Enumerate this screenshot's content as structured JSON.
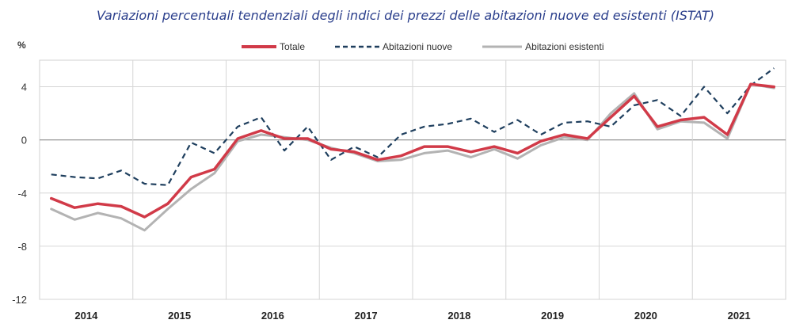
{
  "chart_data": {
    "type": "line",
    "title": "Variazioni percentuali tendenziali degli indici dei prezzi delle abitazioni nuove ed esistenti (ISTAT)",
    "ylabel": "%",
    "xlabel": "",
    "ylim": [
      -12,
      6
    ],
    "yticks": [
      -12,
      -8,
      -4,
      0,
      4
    ],
    "grid": true,
    "legend_position": "top",
    "years": [
      "2014",
      "2015",
      "2016",
      "2017",
      "2018",
      "2019",
      "2020",
      "2021"
    ],
    "x": [
      "2014 T1",
      "2014 T2",
      "2014 T3",
      "2014 T4",
      "2015 T1",
      "2015 T2",
      "2015 T3",
      "2015 T4",
      "2016 T1",
      "2016 T2",
      "2016 T3",
      "2016 T4",
      "2017 T1",
      "2017 T2",
      "2017 T3",
      "2017 T4",
      "2018 T1",
      "2018 T2",
      "2018 T3",
      "2018 T4",
      "2019 T1",
      "2019 T2",
      "2019 T3",
      "2019 T4",
      "2020 T1",
      "2020 T2",
      "2020 T3",
      "2020 T4",
      "2021 T1",
      "2021 T2",
      "2021 T3",
      "2021 T4"
    ],
    "series": [
      {
        "name": "Totale",
        "color": "#d13a48",
        "style": "solid",
        "values": [
          -4.4,
          -5.1,
          -4.8,
          -5.0,
          -5.8,
          -4.8,
          -2.8,
          -2.2,
          0.1,
          0.7,
          0.1,
          0.1,
          -0.7,
          -0.9,
          -1.5,
          -1.2,
          -0.5,
          -0.5,
          -0.9,
          -0.5,
          -1.0,
          -0.1,
          0.4,
          0.1,
          1.7,
          3.3,
          1.0,
          1.5,
          1.7,
          0.4,
          4.2,
          4.0
        ]
      },
      {
        "name": "Abitazioni nuove",
        "color": "#1f3f5e",
        "style": "dashed",
        "values": [
          -2.6,
          -2.8,
          -2.9,
          -2.3,
          -3.3,
          -3.4,
          -0.2,
          -1.0,
          1.0,
          1.7,
          -0.8,
          1.0,
          -1.5,
          -0.5,
          -1.3,
          0.4,
          1.0,
          1.2,
          1.6,
          0.6,
          1.5,
          0.4,
          1.3,
          1.4,
          1.0,
          2.6,
          3.0,
          1.8,
          4.0,
          2.0,
          4.1,
          5.4
        ]
      },
      {
        "name": "Abitazioni esistenti",
        "color": "#b3b3b3",
        "style": "solid",
        "values": [
          -5.2,
          -6.0,
          -5.5,
          -5.9,
          -6.8,
          -5.2,
          -3.7,
          -2.5,
          -0.1,
          0.4,
          0.2,
          0.0,
          -0.6,
          -1.0,
          -1.6,
          -1.5,
          -1.0,
          -0.8,
          -1.3,
          -0.7,
          -1.4,
          -0.4,
          0.2,
          0.0,
          2.0,
          3.5,
          0.8,
          1.4,
          1.3,
          0.1,
          4.2,
          3.9
        ]
      }
    ]
  }
}
